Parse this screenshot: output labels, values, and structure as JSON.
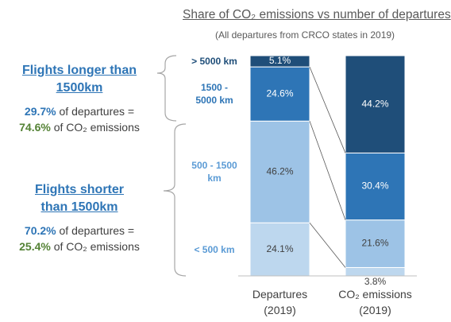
{
  "chart_data": {
    "type": "bar",
    "stacked": true,
    "title": "Share of CO₂ emissions vs number of departures",
    "subtitle": "(All departures from CRCO states in 2019)",
    "categories": [
      "Departures (2019)",
      "CO₂ emissions (2019)"
    ],
    "ylim": [
      0,
      100
    ],
    "series": [
      {
        "name": "< 500 km",
        "color": "#bdd7ee",
        "values": [
          24.1,
          3.8
        ],
        "value_labels": [
          "24.1%",
          "3.8%"
        ]
      },
      {
        "name": "500 - 1500 km",
        "color": "#9dc3e6",
        "values": [
          46.2,
          21.6
        ],
        "value_labels": [
          "46.2%",
          "21.6%"
        ]
      },
      {
        "name": "1500 - 5000 km",
        "color": "#2e75b6",
        "values": [
          24.6,
          30.4
        ],
        "value_labels": [
          "24.6%",
          "30.4%"
        ]
      },
      {
        "name": "> 5000 km",
        "color": "#1f4e79",
        "values": [
          5.1,
          44.2
        ],
        "value_labels": [
          "5.1%",
          "44.2%"
        ]
      }
    ],
    "annotations": [
      {
        "heading": "Flights longer than 1500km",
        "dep_share": "29.7%",
        "dep_text": "of departures =",
        "co2_share": "74.6%",
        "co2_text": "of CO₂ emissions"
      },
      {
        "heading": "Flights shorter than 1500km",
        "dep_share": "70.2%",
        "dep_text": "of departures =",
        "co2_share": "25.4%",
        "co2_text": "of CO₂ emissions"
      }
    ]
  }
}
